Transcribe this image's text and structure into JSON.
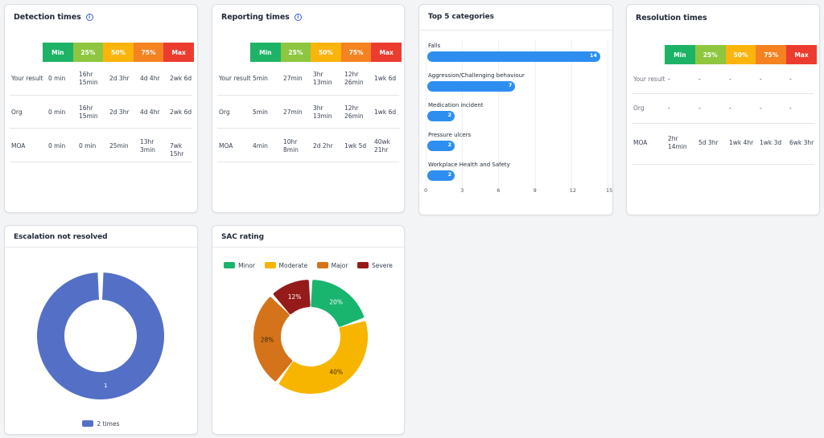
{
  "colors": {
    "min": "#1db366",
    "p25": "#8ec63f",
    "p50": "#fbb40b",
    "p75": "#f58220",
    "max": "#ec3c30",
    "bar": "#2d8ef0",
    "escalation": "#5470c6",
    "minor": "#19b46e",
    "moderate": "#f7b500",
    "major": "#d4731a",
    "severe": "#951b1b"
  },
  "scale": {
    "min": "Min",
    "p25": "25%",
    "p50": "50%",
    "p75": "75%",
    "max": "Max"
  },
  "detection": {
    "title": "Detection times",
    "info_icon": "i",
    "rows": [
      {
        "label": "Your result",
        "min": "0 min",
        "p25": "16hr\n15min",
        "p50": "2d 3hr",
        "p75": "4d 4hr",
        "max": "2wk 6d"
      },
      {
        "label": "Org",
        "min": "0 min",
        "p25": "16hr\n15min",
        "p50": "2d 3hr",
        "p75": "4d 4hr",
        "max": "2wk 6d"
      },
      {
        "label": "MOA",
        "min": "0 min",
        "p25": "0 min",
        "p50": "25min",
        "p75": "13hr\n3min",
        "max": "7wk 15hr"
      }
    ]
  },
  "reporting": {
    "title": "Reporting times",
    "info_icon": "i",
    "rows": [
      {
        "label": "Your result",
        "min": "5min",
        "p25": "27min",
        "p50": "3hr\n13min",
        "p75": "12hr\n26min",
        "max": "1wk 6d"
      },
      {
        "label": "Org",
        "min": "5min",
        "p25": "27min",
        "p50": "3hr\n13min",
        "p75": "12hr\n26min",
        "max": "1wk 6d"
      },
      {
        "label": "MOA",
        "min": "4min",
        "p25": "10hr\n8min",
        "p50": "2d 2hr",
        "p75": "1wk 5d",
        "max": "40wk\n21hr"
      }
    ]
  },
  "resolution": {
    "title": "Resolution times",
    "rows": [
      {
        "label": "Your result",
        "min": "-",
        "p25": "-",
        "p50": "-",
        "p75": "-",
        "max": "-"
      },
      {
        "label": "Org",
        "min": "-",
        "p25": "-",
        "p50": "-",
        "p75": "-",
        "max": "-"
      },
      {
        "label": "MOA",
        "min": "2hr\n14min",
        "p25": "5d 3hr",
        "p50": "1wk 4hr",
        "p75": "1wk 3d",
        "max": "6wk 3hr"
      }
    ]
  },
  "top5": {
    "title": "Top 5 categories",
    "bars": [
      {
        "label": "Falls",
        "value": 14
      },
      {
        "label": "Aggression/Challenging behaviour",
        "value": 7
      },
      {
        "label": "Medication incident",
        "value": 2
      },
      {
        "label": "Pressure ulcers",
        "value": 2
      },
      {
        "label": "Workplace Health and Safety",
        "value": 2
      }
    ],
    "ticks": [
      0,
      3,
      6,
      9,
      12,
      15
    ],
    "xlim": [
      0,
      15
    ]
  },
  "escalation": {
    "title": "Escalation not resolved",
    "legend": "2 times",
    "segment_label": "1"
  },
  "sac": {
    "title": "SAC rating",
    "legend": [
      "Minor",
      "Moderate",
      "Major",
      "Severe"
    ]
  },
  "chart_data": [
    {
      "type": "bar",
      "title": "Top 5 categories",
      "categories": [
        "Falls",
        "Aggression/Challenging behaviour",
        "Medication incident",
        "Pressure ulcers",
        "Workplace Health and Safety"
      ],
      "values": [
        14,
        7,
        2,
        2,
        2
      ],
      "xlim": [
        0,
        15
      ],
      "orientation": "horizontal",
      "grid": true
    },
    {
      "type": "pie",
      "title": "Escalation not resolved",
      "categories": [
        "2 times"
      ],
      "values": [
        1
      ],
      "legend": "bottom"
    },
    {
      "type": "pie",
      "title": "SAC rating",
      "categories": [
        "Minor",
        "Moderate",
        "Major",
        "Severe"
      ],
      "values": [
        20,
        40,
        28,
        12
      ],
      "labels": [
        "20%",
        "40%",
        "28%",
        "12%"
      ],
      "legend": "top"
    }
  ]
}
